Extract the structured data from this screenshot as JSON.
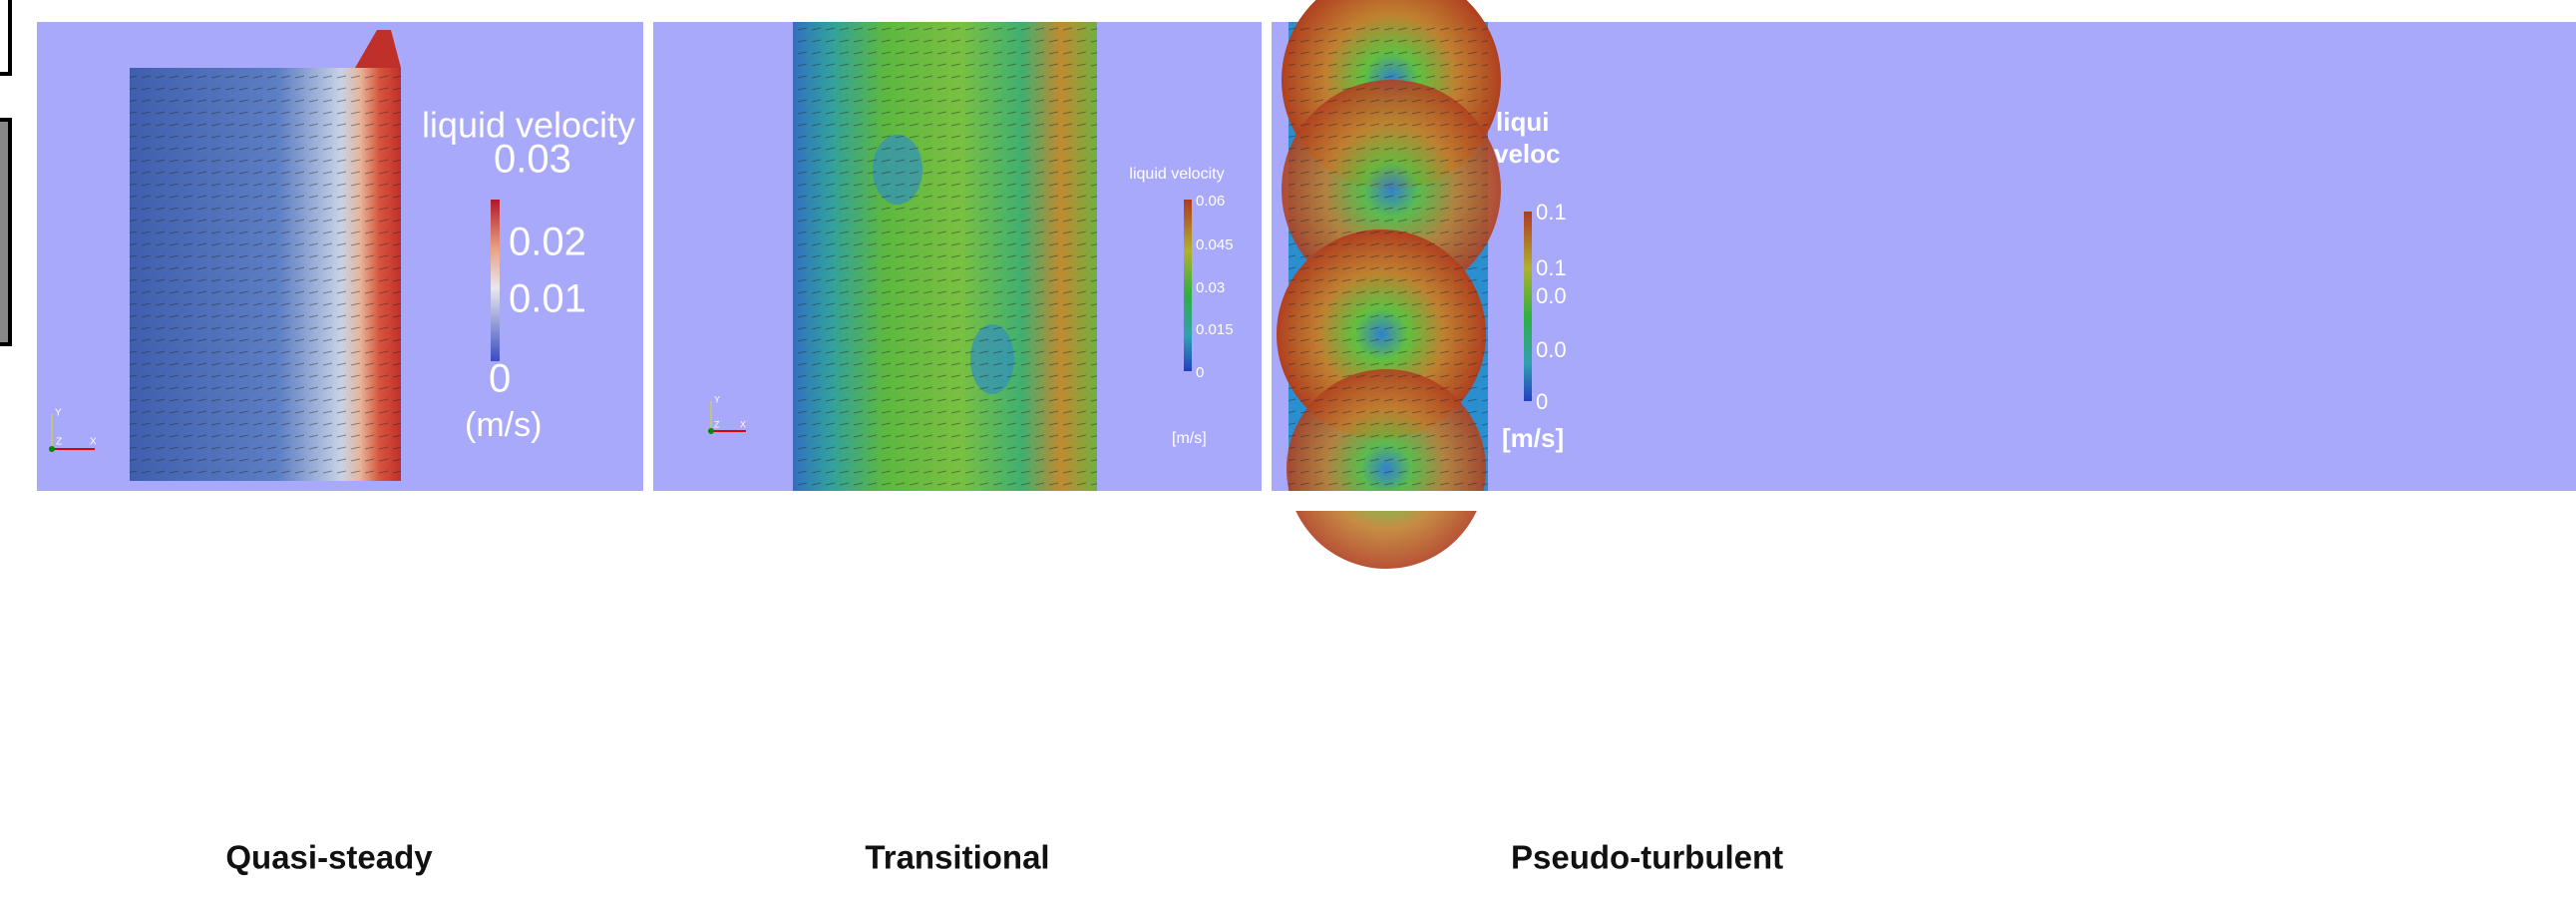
{
  "panels": [
    {
      "legend": {
        "title": [
          "liquid velocity"
        ],
        "ticks": [
          "0.03",
          "0.02",
          "0.01",
          "0"
        ],
        "unit": "(m/s)"
      },
      "axes": [
        "Y",
        "Z",
        "X"
      ],
      "caption": "Quasi-steady"
    },
    {
      "legend": {
        "title": [
          "liquid velocity"
        ],
        "ticks": [
          "0.06",
          "0.045",
          "0.03",
          "0.015",
          "0"
        ],
        "unit": "[m/s]"
      },
      "axes": [
        "Y",
        "Z",
        "X"
      ],
      "caption": "Transitional"
    },
    {
      "legend": {
        "title": [
          "liqui",
          "veloc"
        ],
        "ticks": [
          "0.1",
          "0.1",
          "0.0",
          "0.0",
          "0"
        ],
        "unit": "[m/s]"
      },
      "caption": "Pseudo-turbulent"
    }
  ]
}
